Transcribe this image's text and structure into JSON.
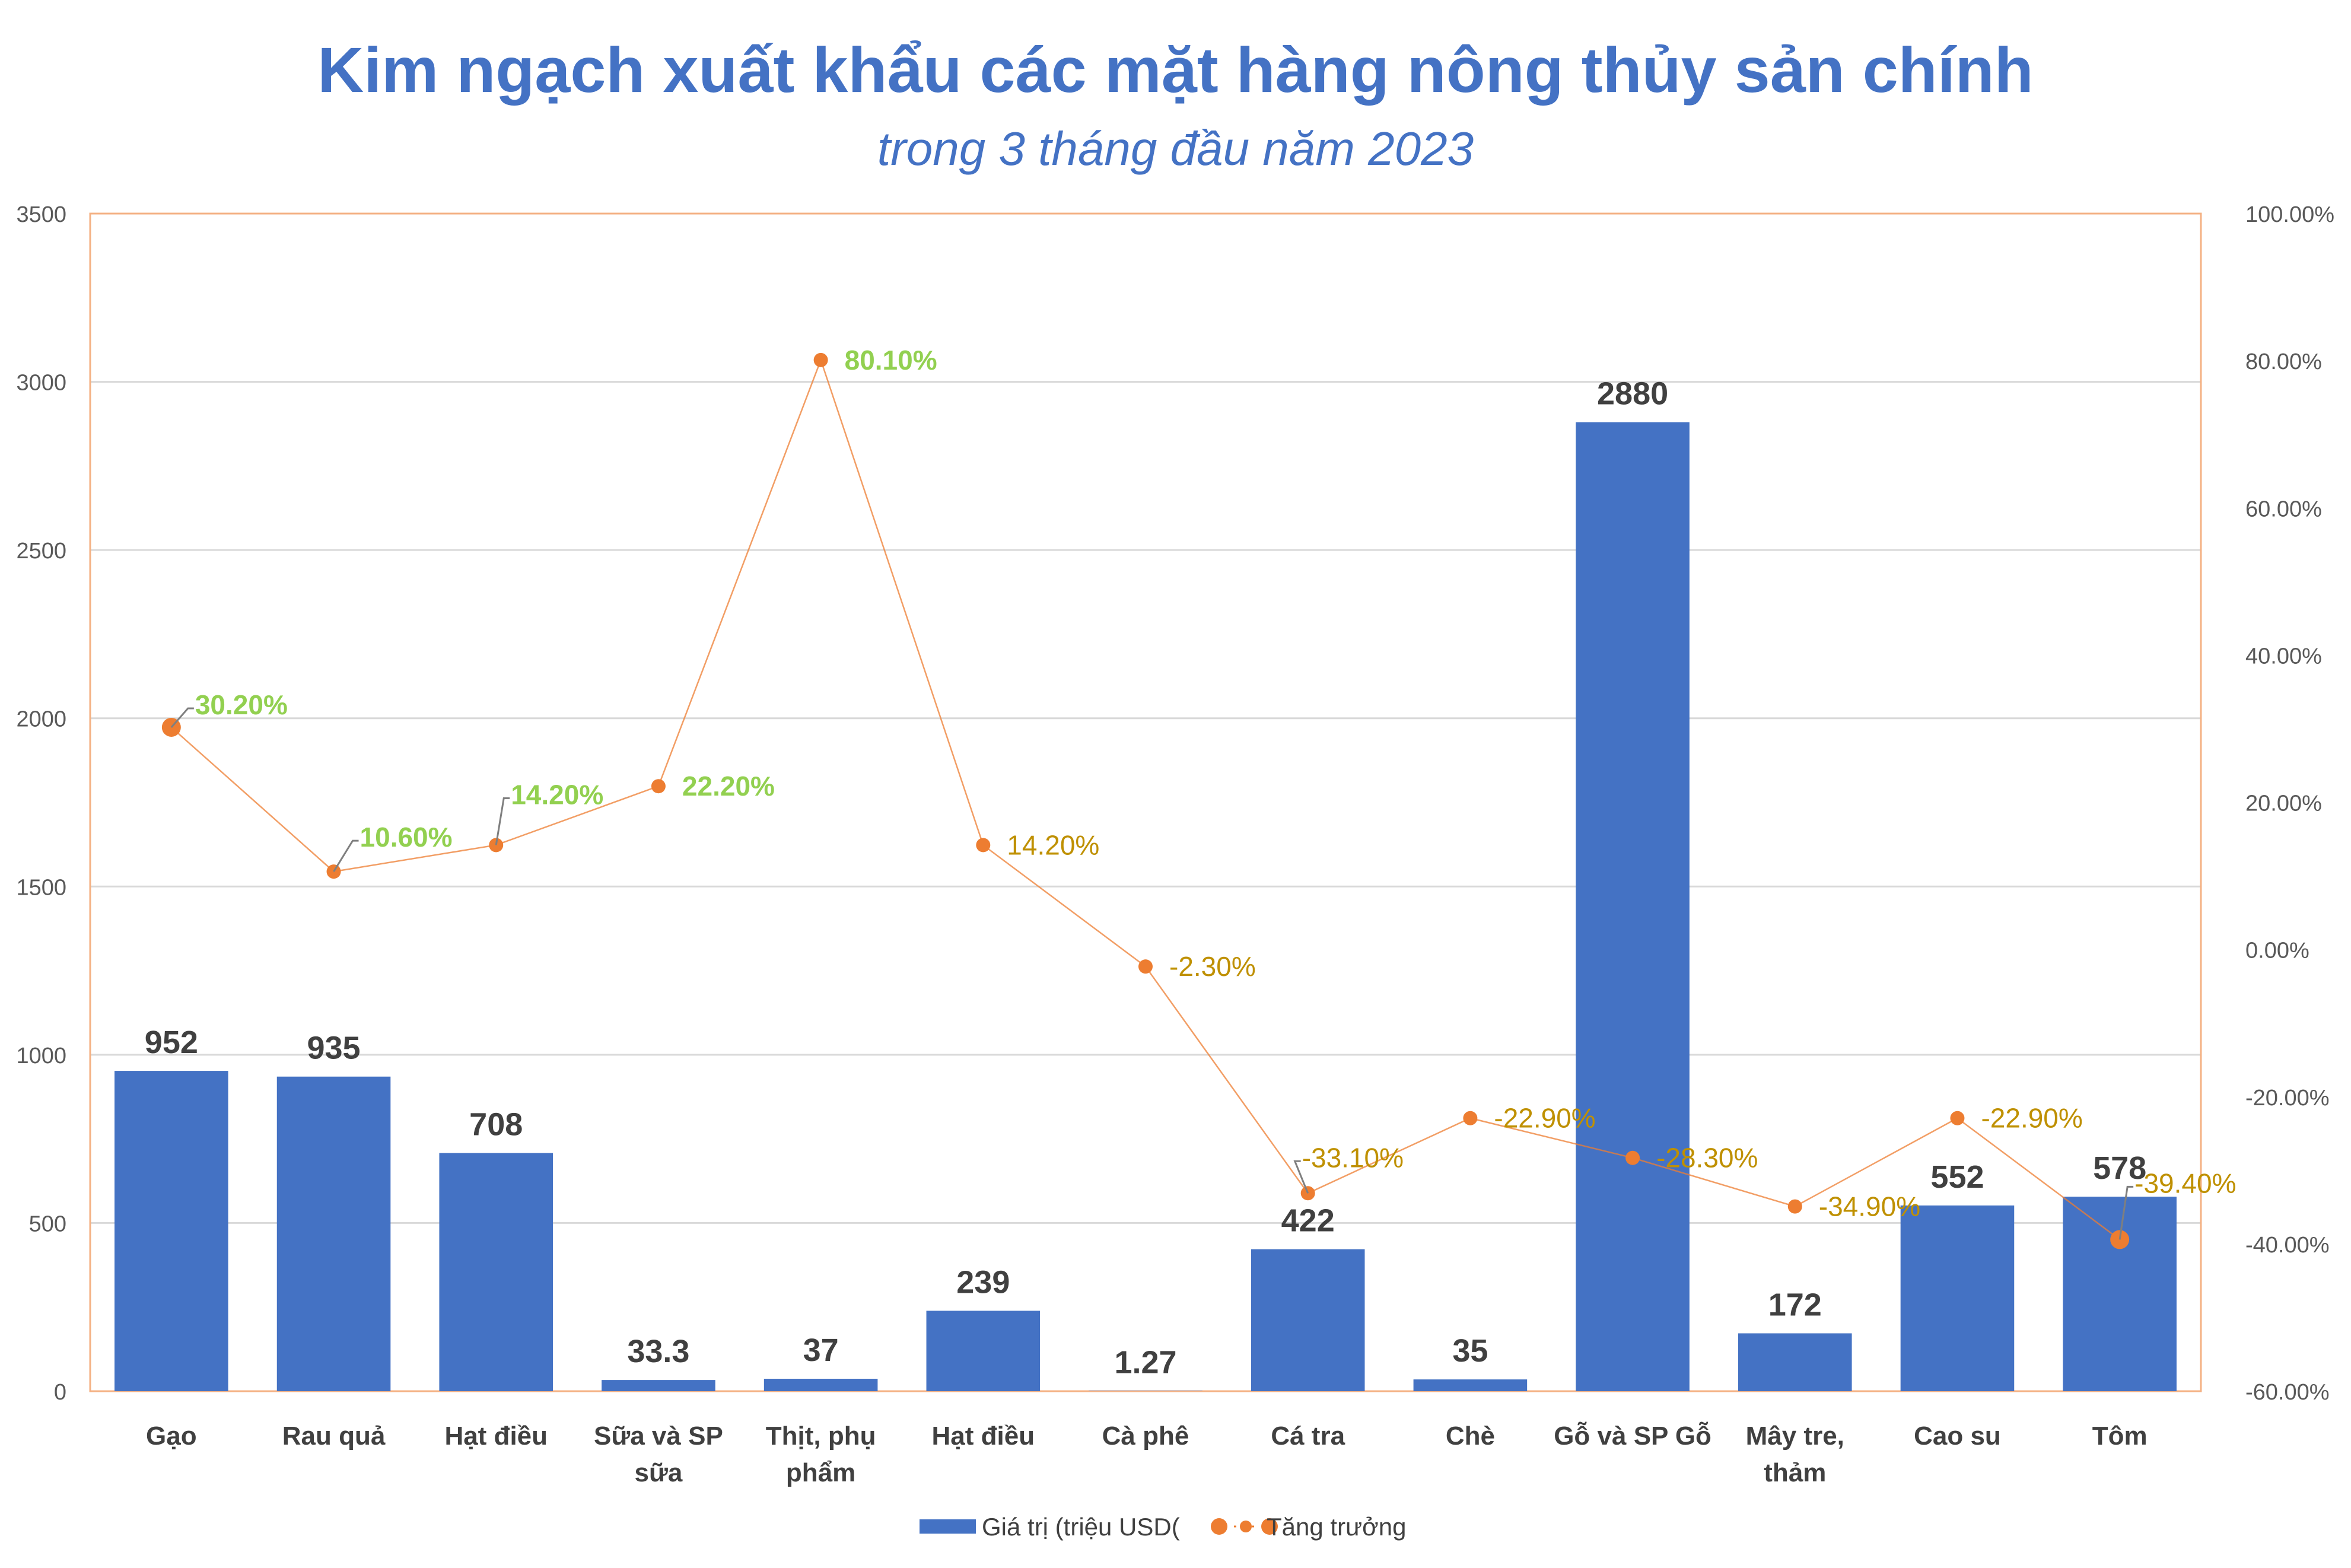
{
  "chart_data": {
    "type": "bar",
    "title": "Kim ngạch xuất khẩu các mặt hàng nông thủy sản chính",
    "subtitle": "trong 3 tháng đầu năm 2023",
    "categories": [
      [
        "Gạo"
      ],
      [
        "Rau quả"
      ],
      [
        "Hạt điều"
      ],
      [
        "Sữa và SP",
        "sữa"
      ],
      [
        "Thịt, phụ",
        "phẩm"
      ],
      [
        "Hạt điều"
      ],
      [
        "Cà phê"
      ],
      [
        "Cá tra"
      ],
      [
        "Chè"
      ],
      [
        "Gỗ và SP Gỗ"
      ],
      [
        "Mây tre,",
        "thảm"
      ],
      [
        "Cao su"
      ],
      [
        "Tôm"
      ]
    ],
    "series": [
      {
        "name": "Giá trị (triệu USD(",
        "type": "bar",
        "axis": "left",
        "color": "#4472c4",
        "values": [
          952,
          935,
          708,
          33.3,
          37,
          239,
          1.27,
          422,
          35,
          2880,
          172,
          552,
          578
        ],
        "labels": [
          "952",
          "935",
          "708",
          "33.3",
          "37",
          "239",
          "1.27",
          "422",
          "35",
          "2880",
          "172",
          "552",
          "578"
        ]
      },
      {
        "name": "Tăng trưởng",
        "type": "line",
        "axis": "right",
        "color": "#ed7d31",
        "values": [
          30.2,
          10.6,
          14.2,
          22.2,
          80.1,
          14.2,
          -2.3,
          -33.1,
          -22.9,
          -28.3,
          -34.9,
          -22.9,
          -39.4
        ],
        "labels": [
          "30.20%",
          "10.60%",
          "14.20%",
          "22.20%",
          "80.10%",
          "14.20%",
          "-2.30%",
          "-33.10%",
          "-22.90%",
          "-28.30%",
          "-34.90%",
          "-22.90%",
          "-39.40%"
        ],
        "label_colors": [
          "#92d050",
          "#92d050",
          "#92d050",
          "#92d050",
          "#92d050",
          "#bf9000",
          "#bf9000",
          "#bf9000",
          "#bf9000",
          "#bf9000",
          "#bf9000",
          "#bf9000",
          "#bf9000"
        ]
      }
    ],
    "y_left": {
      "min": 0,
      "max": 3500,
      "ticks": [
        "0",
        "500",
        "1000",
        "1500",
        "2000",
        "2500",
        "3000",
        "3500"
      ]
    },
    "y_right": {
      "min": -60,
      "max": 100,
      "ticks": [
        "-60.00%",
        "-40.00%",
        "-20.00%",
        "0.00%",
        "20.00%",
        "40.00%",
        "60.00%",
        "80.00%",
        "100.00%"
      ]
    },
    "grid": true,
    "legend_position": "bottom"
  }
}
